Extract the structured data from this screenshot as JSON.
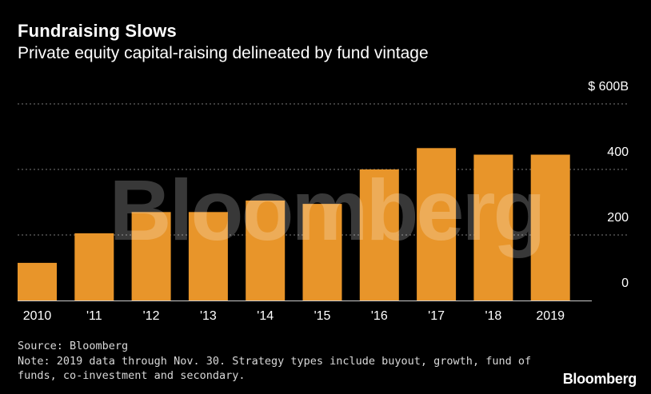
{
  "title": "Fundraising Slows",
  "subtitle": "Private equity capital-raising delineated by fund vintage",
  "watermark": "Bloomberg",
  "source": "Source: Bloomberg",
  "note_line1": "Note: 2019 data through Nov. 30. Strategy types include buyout, growth, fund of",
  "note_line2": "funds, co-investment and secondary.",
  "brand": "Bloomberg",
  "chart_data": {
    "type": "bar",
    "categories": [
      "2010",
      "'11",
      "'12",
      "'13",
      "'14",
      "'15",
      "'16",
      "'17",
      "'18",
      "2019"
    ],
    "values": [
      115,
      205,
      270,
      270,
      305,
      295,
      400,
      465,
      445,
      445
    ],
    "ylim": [
      0,
      600
    ],
    "yticks": [
      0,
      200,
      400,
      600
    ],
    "ytick_labels": [
      "0",
      "200",
      "400",
      "$ 600B"
    ],
    "grid": true,
    "bar_color": "#e8952a",
    "grid_color": "#7a7a7a",
    "axis_color": "#cccccc"
  }
}
